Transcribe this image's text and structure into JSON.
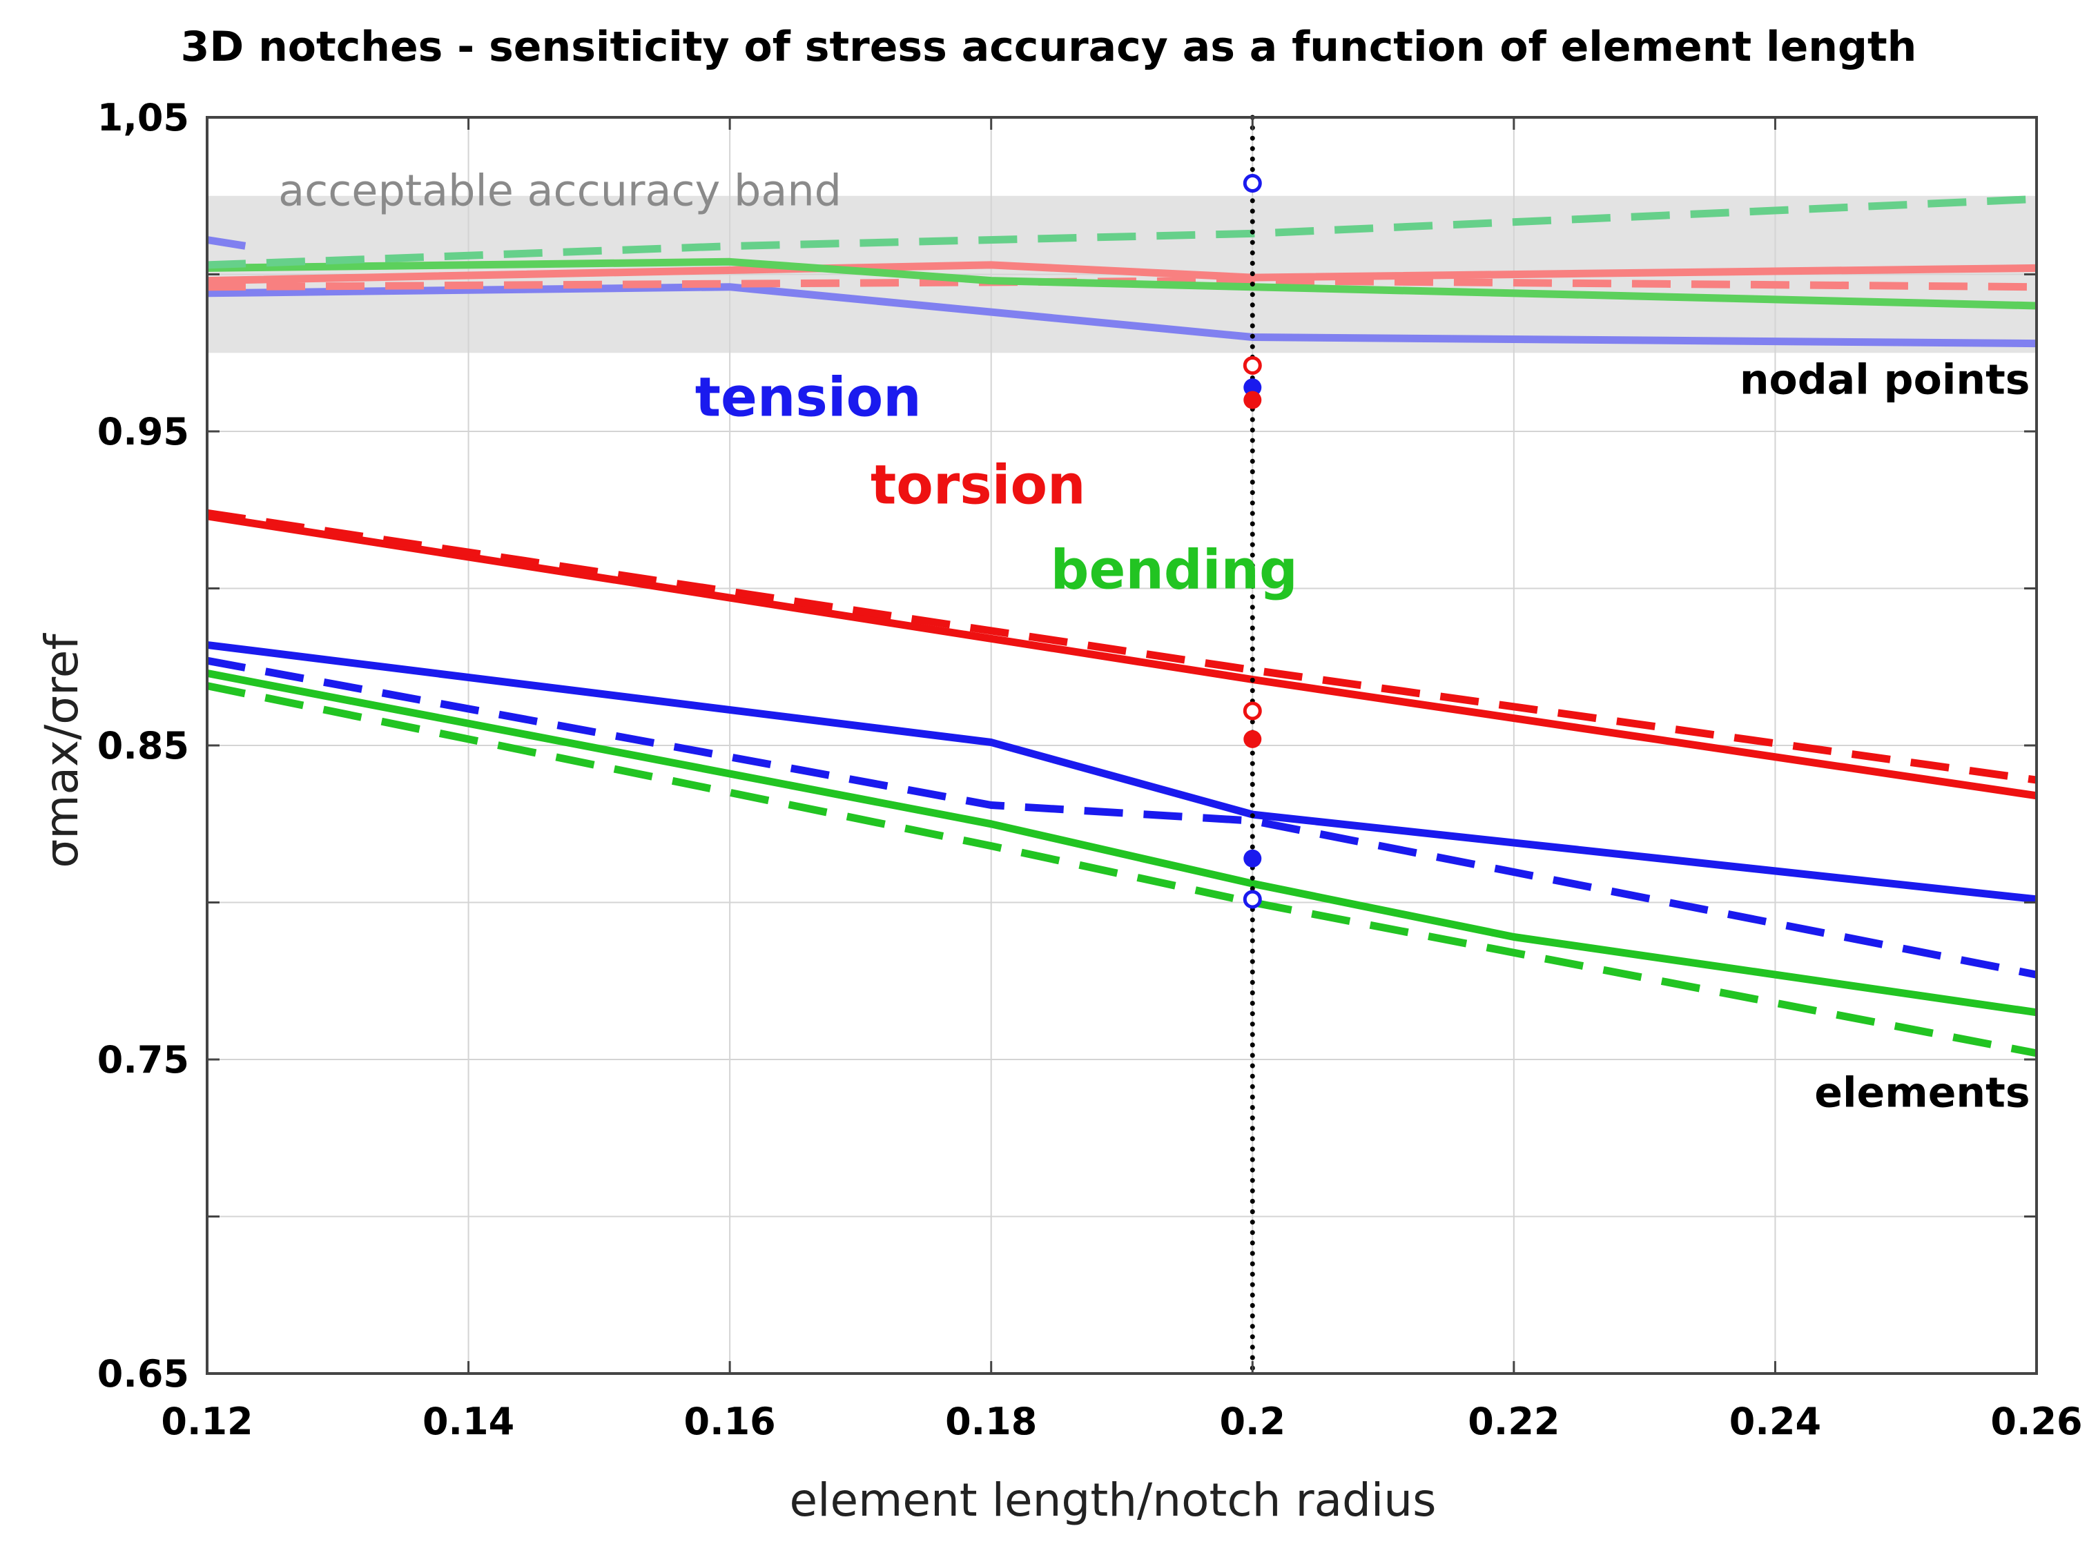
{
  "chart_data": {
    "type": "line",
    "title": "3D notches - sensiticity of stress accuracy as a function of element length",
    "xlabel": "element length/notch radius",
    "ylabel": "σmax/σref",
    "xlim": [
      0.12,
      0.26
    ],
    "ylim": [
      0.65,
      1.05
    ],
    "x_ticks": [
      0.12,
      0.14,
      0.16,
      0.18,
      0.2,
      0.22,
      0.24,
      0.26
    ],
    "x_tick_labels": [
      "0.12",
      "0.14",
      "0.16",
      "0.18",
      "0.2",
      "0.22",
      "0.24",
      "0.26"
    ],
    "y_ticks": [
      0.65,
      0.75,
      0.85,
      0.95,
      1.05
    ],
    "y_tick_labels": [
      "0.65",
      "0.75",
      "0.85",
      "0.95",
      "1,05"
    ],
    "y_minor_ticks": [
      0.7,
      0.8,
      0.9,
      1.0
    ],
    "grid": true,
    "band": {
      "label": "acceptable accuracy band",
      "y_range": [
        0.975,
        1.025
      ],
      "color": "#e3e3e3"
    },
    "reference_line": {
      "x": 0.2,
      "style": "dotted",
      "color": "#000000"
    },
    "series": [
      {
        "name": "tension elements solid",
        "color": "#1a1aee",
        "dash": false,
        "group": "elements",
        "x": [
          0.12,
          0.18,
          0.2,
          0.26
        ],
        "y": [
          0.882,
          0.851,
          0.828,
          0.801
        ]
      },
      {
        "name": "tension elements dashed",
        "color": "#1a1aee",
        "dash": true,
        "group": "elements",
        "x": [
          0.12,
          0.18,
          0.2,
          0.26
        ],
        "y": [
          0.877,
          0.831,
          0.826,
          0.777
        ]
      },
      {
        "name": "torsion elements solid",
        "color": "#ee1111",
        "dash": false,
        "group": "elements",
        "x": [
          0.12,
          0.18,
          0.2,
          0.26
        ],
        "y": [
          0.923,
          0.884,
          0.871,
          0.834
        ]
      },
      {
        "name": "torsion elements dashed",
        "color": "#ee1111",
        "dash": true,
        "group": "elements",
        "x": [
          0.12,
          0.2,
          0.26
        ],
        "y": [
          0.924,
          0.874,
          0.839
        ]
      },
      {
        "name": "bending elements solid",
        "color": "#22c422",
        "dash": false,
        "group": "elements",
        "x": [
          0.12,
          0.18,
          0.2,
          0.22,
          0.26
        ],
        "y": [
          0.873,
          0.825,
          0.806,
          0.789,
          0.765
        ]
      },
      {
        "name": "bending elements dashed",
        "color": "#22c422",
        "dash": true,
        "group": "elements",
        "x": [
          0.12,
          0.18,
          0.2,
          0.26
        ],
        "y": [
          0.869,
          0.818,
          0.8,
          0.752
        ]
      },
      {
        "name": "tension nodal solid",
        "color": "#8080f0",
        "dash": false,
        "group": "nodal points",
        "x": [
          0.12,
          0.16,
          0.2,
          0.26
        ],
        "y": [
          0.994,
          0.996,
          0.98,
          0.978
        ]
      },
      {
        "name": "tension nodal dashed",
        "color": "#8080f0",
        "dash": true,
        "group": "nodal points",
        "x": [
          0.12,
          0.123
        ],
        "y": [
          1.011,
          1.009
        ]
      },
      {
        "name": "torsion nodal solid",
        "color": "#f88080",
        "dash": false,
        "group": "nodal points",
        "x": [
          0.12,
          0.18,
          0.2,
          0.26
        ],
        "y": [
          0.998,
          1.003,
          0.999,
          1.002
        ]
      },
      {
        "name": "torsion nodal dashed",
        "color": "#f88080",
        "dash": true,
        "group": "nodal points",
        "x": [
          0.12,
          0.2,
          0.26
        ],
        "y": [
          0.996,
          0.998,
          0.996
        ]
      },
      {
        "name": "bending nodal solid",
        "color": "#5cd05c",
        "dash": false,
        "group": "nodal points",
        "x": [
          0.12,
          0.16,
          0.18,
          0.2,
          0.26
        ],
        "y": [
          1.002,
          1.004,
          0.998,
          0.996,
          0.99
        ]
      },
      {
        "name": "bending nodal dashed",
        "color": "#66d08a",
        "dash": true,
        "group": "nodal points",
        "x": [
          0.12,
          0.16,
          0.2,
          0.26
        ],
        "y": [
          1.003,
          1.009,
          1.013,
          1.024
        ]
      }
    ],
    "markers": [
      {
        "name": "tension open 1",
        "color": "#1a1aee",
        "filled": false,
        "x": 0.2,
        "y": 1.029
      },
      {
        "name": "torsion open 1",
        "color": "#ee1111",
        "filled": false,
        "x": 0.2,
        "y": 0.971
      },
      {
        "name": "tension filled 1",
        "color": "#1a1aee",
        "filled": true,
        "x": 0.2,
        "y": 0.964
      },
      {
        "name": "torsion filled 1",
        "color": "#ee1111",
        "filled": true,
        "x": 0.2,
        "y": 0.96
      },
      {
        "name": "torsion open 2",
        "color": "#ee1111",
        "filled": false,
        "x": 0.2,
        "y": 0.861
      },
      {
        "name": "torsion filled 2",
        "color": "#ee1111",
        "filled": true,
        "x": 0.2,
        "y": 0.852
      },
      {
        "name": "tension filled 2",
        "color": "#1a1aee",
        "filled": true,
        "x": 0.2,
        "y": 0.814
      },
      {
        "name": "tension open 2",
        "color": "#1a1aee",
        "filled": false,
        "x": 0.2,
        "y": 0.801
      }
    ],
    "annotations": [
      {
        "text": "tension",
        "color": "#1a1aee",
        "x": 0.166,
        "y": 0.955
      },
      {
        "text": "torsion",
        "color": "#ee1111",
        "x": 0.179,
        "y": 0.927
      },
      {
        "text": "bending",
        "color": "#22c422",
        "x": 0.194,
        "y": 0.9
      },
      {
        "text": "nodal points",
        "color": "#000000",
        "x": 0.2595,
        "y": 0.962
      },
      {
        "text": "elements",
        "color": "#000000",
        "x": 0.2595,
        "y": 0.735
      }
    ]
  }
}
